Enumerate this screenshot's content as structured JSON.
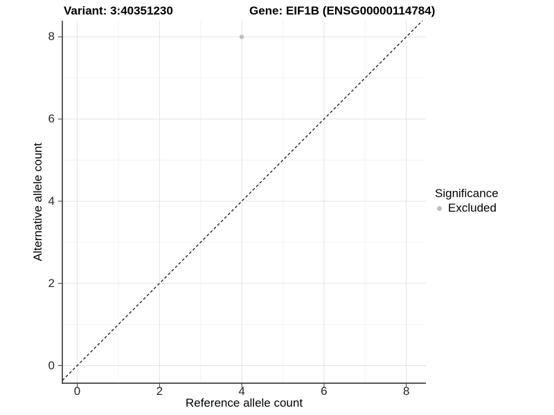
{
  "chart_data": {
    "type": "scatter",
    "title_left": "Variant: 3:40351230",
    "title_right": "Gene: EIF1B (ENSG00000114784)",
    "xlabel": "Reference allele count",
    "ylabel": "Alternative allele count",
    "x_ticks": [
      0,
      2,
      4,
      6,
      8
    ],
    "x_tick_labels": [
      "0",
      "2",
      "4",
      "6",
      "8"
    ],
    "y_ticks": [
      0,
      2,
      4,
      6,
      8
    ],
    "y_tick_labels": [
      "0",
      "2",
      "4",
      "6",
      "8"
    ],
    "x_minor_grid": [
      1,
      3,
      5,
      7
    ],
    "y_minor_grid": [
      1,
      3,
      5,
      7
    ],
    "xlim": [
      -0.36,
      8.47
    ],
    "ylim": [
      -0.43,
      8.4
    ],
    "grid": "major and minor, every 1 unit, light grey on white",
    "reference_line": {
      "slope": 1,
      "intercept": 0,
      "linetype": "dashed",
      "color": "#111111"
    },
    "series": [
      {
        "name": "Excluded",
        "color": "#bebebe",
        "point_radius": 3.2,
        "points": [
          [
            4,
            8
          ]
        ]
      }
    ],
    "legend": {
      "position": "right",
      "title": "Significance",
      "items": [
        {
          "label": "Excluded",
          "color": "#bebebe"
        }
      ]
    },
    "style": {
      "grid_major_color": "#e3e3e3",
      "grid_minor_color": "#f2f2f2",
      "axis_line_color": "#3f3f3f",
      "tick_mark_color": "#333333",
      "tick_text_color": "#262626",
      "title_color": "#000000",
      "background": "#ffffff"
    }
  }
}
